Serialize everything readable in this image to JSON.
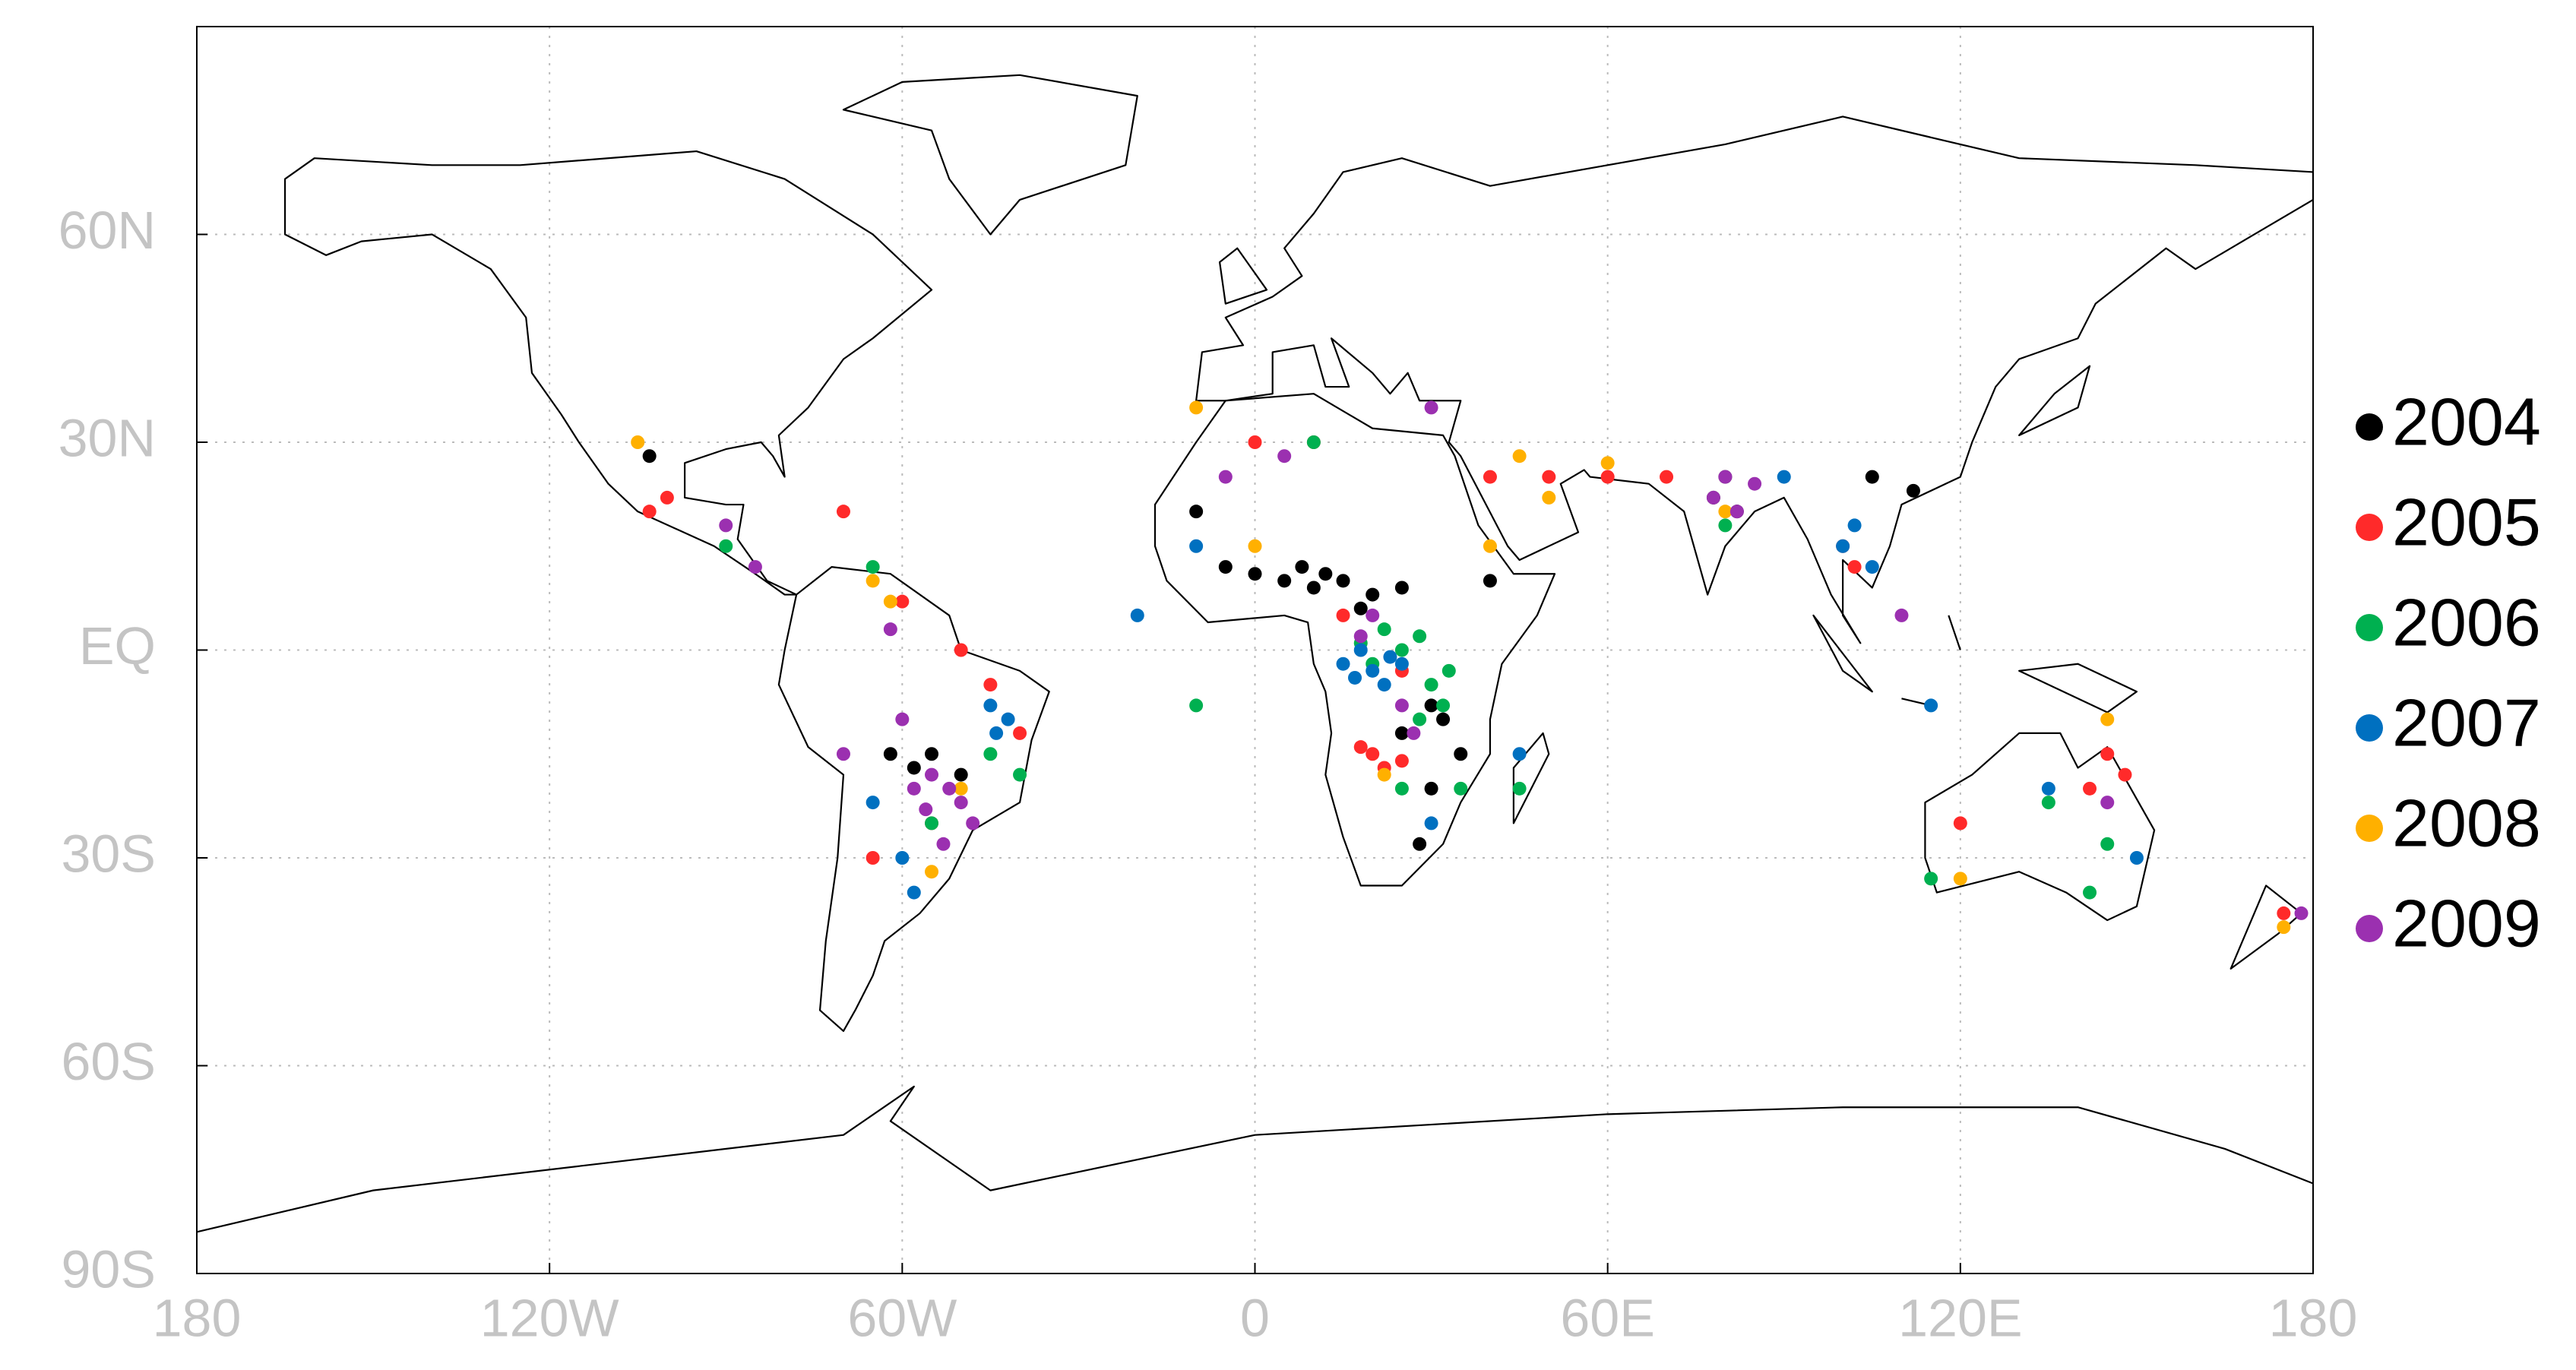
{
  "chart_data": {
    "type": "scatter",
    "xlim": [
      -180,
      180
    ],
    "ylim": [
      -90,
      90
    ],
    "xticks": [
      {
        "value": -180,
        "label": "180"
      },
      {
        "value": -120,
        "label": "120W"
      },
      {
        "value": -60,
        "label": "60W"
      },
      0,
      {
        "value": 60,
        "label": "60E"
      },
      {
        "value": 120,
        "label": "120E"
      },
      {
        "value": 180,
        "label": "180"
      }
    ],
    "yticks": [
      {
        "value": -90,
        "label": "90S"
      },
      {
        "value": -60,
        "label": "60S"
      },
      {
        "value": -30,
        "label": "30S"
      },
      {
        "value": 0,
        "label": "EQ"
      },
      {
        "value": 30,
        "label": "30N"
      },
      {
        "value": 60,
        "label": "60N"
      }
    ],
    "grid": true,
    "legend": "right",
    "series": [
      {
        "name": "2004",
        "color": "#000000",
        "x": [
          -5,
          0,
          5,
          10,
          15,
          20,
          25,
          12,
          8,
          30,
          32,
          35,
          30,
          28,
          80,
          78,
          82,
          105,
          112,
          -55,
          -58,
          -50,
          -62,
          -103,
          -10,
          40,
          25,
          18
        ],
        "values": [
          12,
          11,
          10,
          9,
          10,
          8,
          9,
          11,
          12,
          -8,
          -10,
          -15,
          -20,
          -28,
          25,
          22,
          20,
          25,
          23,
          -15,
          -17,
          -18,
          -15,
          28,
          20,
          10,
          -12,
          6
        ]
      },
      {
        "name": "2005",
        "color": "#ff2a2a",
        "x": [
          20,
          22,
          25,
          18,
          -45,
          -40,
          -60,
          -70,
          -103,
          40,
          50,
          60,
          70,
          145,
          142,
          120,
          25,
          15,
          0,
          10,
          175,
          100,
          102,
          -50,
          -55,
          -65,
          -100,
          148
        ],
        "values": [
          -15,
          -17,
          -16,
          -14,
          -5,
          -12,
          7,
          20,
          20,
          25,
          25,
          25,
          25,
          -15,
          -20,
          -25,
          -3,
          5,
          30,
          30,
          -38,
          15,
          12,
          0,
          -25,
          -30,
          22,
          -18
        ]
      },
      {
        "name": "2006",
        "color": "#00b050",
        "x": [
          20,
          25,
          22,
          28,
          30,
          32,
          28,
          35,
          -40,
          -45,
          -55,
          -90,
          -10,
          10,
          45,
          115,
          145,
          142,
          135,
          80,
          25,
          -65,
          18,
          33
        ],
        "values": [
          -2,
          0,
          3,
          2,
          -5,
          -8,
          -10,
          -20,
          -18,
          -15,
          -25,
          15,
          -8,
          30,
          -20,
          -33,
          -28,
          -35,
          -22,
          18,
          -20,
          12,
          1,
          -3
        ]
      },
      {
        "name": "2007",
        "color": "#0070c0",
        "x": [
          15,
          20,
          25,
          18,
          22,
          -45,
          -42,
          -44,
          -58,
          -60,
          -65,
          100,
          102,
          105,
          45,
          30,
          135,
          115,
          -10,
          -20,
          90,
          150,
          17,
          23
        ],
        "values": [
          -2,
          -3,
          -2,
          0,
          -5,
          -8,
          -10,
          -12,
          -35,
          -30,
          -22,
          15,
          18,
          12,
          -15,
          -25,
          -20,
          -8,
          15,
          5,
          25,
          -30,
          -4,
          -1
        ]
      },
      {
        "name": "2008",
        "color": "#ffb000",
        "x": [
          -10,
          -65,
          -62,
          -50,
          -55,
          45,
          50,
          60,
          40,
          120,
          145,
          0,
          -105,
          80,
          22,
          175
        ],
        "values": [
          35,
          10,
          7,
          -20,
          -32,
          28,
          22,
          27,
          15,
          -33,
          -10,
          15,
          30,
          20,
          -18,
          -40
        ]
      },
      {
        "name": "2009",
        "color": "#9b30b0",
        "x": [
          -55,
          -52,
          -50,
          -48,
          -53,
          -58,
          -60,
          -62,
          78,
          80,
          82,
          85,
          20,
          18,
          25,
          27,
          -5,
          5,
          -90,
          -85,
          30,
          110,
          145,
          178,
          -70,
          -56
        ],
        "values": [
          -18,
          -20,
          -22,
          -25,
          -28,
          -20,
          -10,
          3,
          22,
          25,
          20,
          24,
          5,
          2,
          -8,
          -12,
          25,
          28,
          18,
          12,
          35,
          5,
          -22,
          -38,
          -15,
          -23
        ]
      }
    ]
  }
}
